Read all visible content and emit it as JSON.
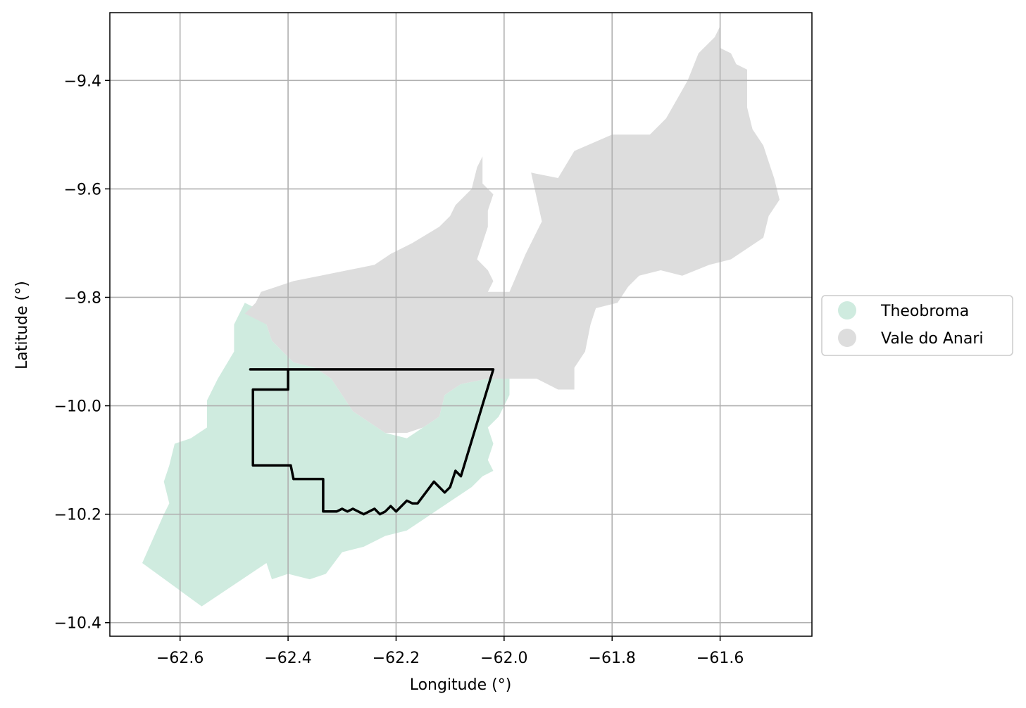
{
  "chart_data": {
    "type": "map",
    "xlabel": "Longitude (°)",
    "ylabel": "Latitude (°)",
    "xlim": [
      -62.73,
      -61.43
    ],
    "ylim": [
      -10.425,
      -9.275
    ],
    "grid": true,
    "legend_placement": "right-center",
    "x_ticks": [
      -62.6,
      -62.4,
      -62.2,
      -62.0,
      -61.8,
      -61.6
    ],
    "y_ticks": [
      -9.4,
      -9.6,
      -9.8,
      -10.0,
      -10.2,
      -10.4
    ],
    "x_tick_labels": [
      "−62.6",
      "−62.4",
      "−62.2",
      "−62.0",
      "−61.8",
      "−61.6"
    ],
    "y_tick_labels": [
      "−9.4",
      "−9.6",
      "−9.8",
      "−10.0",
      "−10.2",
      "−10.4"
    ],
    "legend": [
      {
        "label": "Theobroma",
        "color": "#cfebdf"
      },
      {
        "label": "Vale do Anari",
        "color": "#dddddd"
      }
    ],
    "regions": [
      {
        "name": "Theobroma",
        "color": "#cfebdf",
        "coords": [
          [
            -62.67,
            -10.29
          ],
          [
            -62.56,
            -10.37
          ],
          [
            -62.44,
            -10.29
          ],
          [
            -62.43,
            -10.32
          ],
          [
            -62.4,
            -10.31
          ],
          [
            -62.36,
            -10.32
          ],
          [
            -62.33,
            -10.31
          ],
          [
            -62.3,
            -10.27
          ],
          [
            -62.26,
            -10.26
          ],
          [
            -62.22,
            -10.24
          ],
          [
            -62.18,
            -10.23
          ],
          [
            -62.15,
            -10.21
          ],
          [
            -62.12,
            -10.19
          ],
          [
            -62.09,
            -10.17
          ],
          [
            -62.06,
            -10.15
          ],
          [
            -62.04,
            -10.13
          ],
          [
            -62.02,
            -10.12
          ],
          [
            -62.03,
            -10.1
          ],
          [
            -62.02,
            -10.07
          ],
          [
            -62.03,
            -10.04
          ],
          [
            -62.01,
            -10.02
          ],
          [
            -62.0,
            -10.0
          ],
          [
            -61.99,
            -9.98
          ],
          [
            -61.99,
            -9.96
          ],
          [
            -61.99,
            -9.95
          ],
          [
            -62.03,
            -9.95
          ],
          [
            -62.08,
            -9.96
          ],
          [
            -62.11,
            -9.98
          ],
          [
            -62.12,
            -10.02
          ],
          [
            -62.18,
            -10.06
          ],
          [
            -62.22,
            -10.05
          ],
          [
            -62.25,
            -10.03
          ],
          [
            -62.28,
            -10.01
          ],
          [
            -62.3,
            -9.98
          ],
          [
            -62.32,
            -9.95
          ],
          [
            -62.35,
            -9.93
          ],
          [
            -62.39,
            -9.92
          ],
          [
            -62.41,
            -9.9
          ],
          [
            -62.43,
            -9.88
          ],
          [
            -62.44,
            -9.85
          ],
          [
            -62.46,
            -9.82
          ],
          [
            -62.48,
            -9.81
          ],
          [
            -62.5,
            -9.85
          ],
          [
            -62.5,
            -9.9
          ],
          [
            -62.53,
            -9.95
          ],
          [
            -62.55,
            -9.99
          ],
          [
            -62.55,
            -10.04
          ],
          [
            -62.58,
            -10.06
          ],
          [
            -62.61,
            -10.07
          ],
          [
            -62.62,
            -10.11
          ],
          [
            -62.63,
            -10.14
          ],
          [
            -62.62,
            -10.18
          ],
          [
            -62.63,
            -10.2
          ]
        ]
      },
      {
        "name": "Vale do Anari",
        "color": "#dddddd",
        "coords": [
          [
            -62.48,
            -9.83
          ],
          [
            -62.46,
            -9.81
          ],
          [
            -62.45,
            -9.79
          ],
          [
            -62.42,
            -9.78
          ],
          [
            -62.39,
            -9.77
          ],
          [
            -62.34,
            -9.76
          ],
          [
            -62.29,
            -9.75
          ],
          [
            -62.24,
            -9.74
          ],
          [
            -62.21,
            -9.72
          ],
          [
            -62.17,
            -9.7
          ],
          [
            -62.12,
            -9.67
          ],
          [
            -62.1,
            -9.65
          ],
          [
            -62.09,
            -9.63
          ],
          [
            -62.06,
            -9.6
          ],
          [
            -62.05,
            -9.56
          ],
          [
            -62.04,
            -9.54
          ],
          [
            -62.04,
            -9.59
          ],
          [
            -62.02,
            -9.61
          ],
          [
            -62.03,
            -9.64
          ],
          [
            -62.03,
            -9.67
          ],
          [
            -62.04,
            -9.7
          ],
          [
            -62.05,
            -9.73
          ],
          [
            -62.03,
            -9.75
          ],
          [
            -62.02,
            -9.77
          ],
          [
            -62.03,
            -9.79
          ],
          [
            -61.99,
            -9.79
          ],
          [
            -61.96,
            -9.72
          ],
          [
            -61.93,
            -9.66
          ],
          [
            -61.95,
            -9.57
          ],
          [
            -61.9,
            -9.58
          ],
          [
            -61.87,
            -9.53
          ],
          [
            -61.8,
            -9.5
          ],
          [
            -61.73,
            -9.5
          ],
          [
            -61.7,
            -9.47
          ],
          [
            -61.66,
            -9.4
          ],
          [
            -61.64,
            -9.35
          ],
          [
            -61.61,
            -9.32
          ],
          [
            -61.6,
            -9.3
          ],
          [
            -61.6,
            -9.34
          ],
          [
            -61.58,
            -9.35
          ],
          [
            -61.57,
            -9.37
          ],
          [
            -61.55,
            -9.38
          ],
          [
            -61.55,
            -9.45
          ],
          [
            -61.54,
            -9.49
          ],
          [
            -61.52,
            -9.52
          ],
          [
            -61.51,
            -9.55
          ],
          [
            -61.5,
            -9.58
          ],
          [
            -61.49,
            -9.62
          ],
          [
            -61.51,
            -9.65
          ],
          [
            -61.52,
            -9.69
          ],
          [
            -61.55,
            -9.71
          ],
          [
            -61.58,
            -9.73
          ],
          [
            -61.62,
            -9.74
          ],
          [
            -61.67,
            -9.76
          ],
          [
            -61.71,
            -9.75
          ],
          [
            -61.75,
            -9.76
          ],
          [
            -61.77,
            -9.78
          ],
          [
            -61.79,
            -9.81
          ],
          [
            -61.83,
            -9.82
          ],
          [
            -61.84,
            -9.85
          ],
          [
            -61.85,
            -9.9
          ],
          [
            -61.87,
            -9.93
          ],
          [
            -61.87,
            -9.97
          ],
          [
            -61.9,
            -9.97
          ],
          [
            -61.94,
            -9.95
          ],
          [
            -61.99,
            -9.95
          ],
          [
            -62.03,
            -9.95
          ],
          [
            -62.08,
            -9.96
          ],
          [
            -62.11,
            -9.98
          ],
          [
            -62.12,
            -10.02
          ],
          [
            -62.15,
            -10.04
          ],
          [
            -62.18,
            -10.05
          ],
          [
            -62.22,
            -10.05
          ],
          [
            -62.25,
            -10.03
          ],
          [
            -62.28,
            -10.01
          ],
          [
            -62.3,
            -9.98
          ],
          [
            -62.32,
            -9.95
          ],
          [
            -62.35,
            -9.93
          ],
          [
            -62.39,
            -9.92
          ],
          [
            -62.41,
            -9.9
          ],
          [
            -62.43,
            -9.88
          ],
          [
            -62.44,
            -9.85
          ]
        ]
      }
    ],
    "outline": {
      "color": "#000000",
      "coords": [
        [
          -62.47,
          -9.933
        ],
        [
          -62.02,
          -9.933
        ],
        [
          -62.08,
          -10.13
        ],
        [
          -62.09,
          -10.12
        ],
        [
          -62.1,
          -10.15
        ],
        [
          -62.11,
          -10.16
        ],
        [
          -62.13,
          -10.14
        ],
        [
          -62.16,
          -10.18
        ],
        [
          -62.17,
          -10.18
        ],
        [
          -62.18,
          -10.175
        ],
        [
          -62.2,
          -10.195
        ],
        [
          -62.21,
          -10.185
        ],
        [
          -62.22,
          -10.195
        ],
        [
          -62.23,
          -10.2
        ],
        [
          -62.24,
          -10.19
        ],
        [
          -62.26,
          -10.2
        ],
        [
          -62.27,
          -10.195
        ],
        [
          -62.28,
          -10.19
        ],
        [
          -62.29,
          -10.195
        ],
        [
          -62.3,
          -10.19
        ],
        [
          -62.31,
          -10.195
        ],
        [
          -62.335,
          -10.195
        ],
        [
          -62.335,
          -10.135
        ],
        [
          -62.39,
          -10.135
        ],
        [
          -62.395,
          -10.11
        ],
        [
          -62.465,
          -10.11
        ],
        [
          -62.465,
          -9.97
        ],
        [
          -62.4,
          -9.97
        ],
        [
          -62.4,
          -9.933
        ]
      ]
    }
  }
}
